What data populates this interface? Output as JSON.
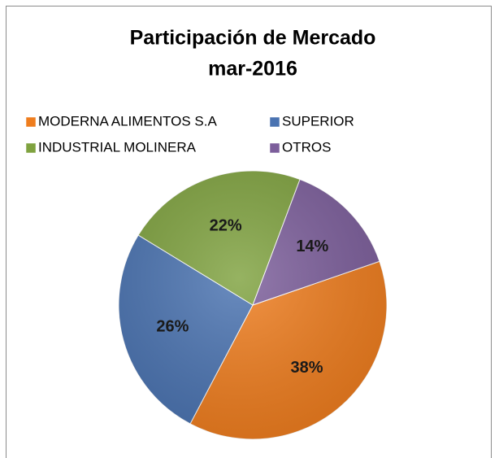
{
  "chart_data": {
    "type": "pie",
    "title": "Participación de Mercado",
    "subtitle": "mar-2016",
    "categories": [
      "MODERNA ALIMENTOS S.A",
      "SUPERIOR",
      "INDUSTRIAL MOLINERA",
      "OTROS"
    ],
    "values": [
      38,
      26,
      22,
      14
    ],
    "value_labels": [
      "38%",
      "26%",
      "22%",
      "14%"
    ],
    "colors": [
      "#ef7d1e",
      "#4a73b1",
      "#7fa23f",
      "#7c5e9b"
    ],
    "legend": "top"
  }
}
